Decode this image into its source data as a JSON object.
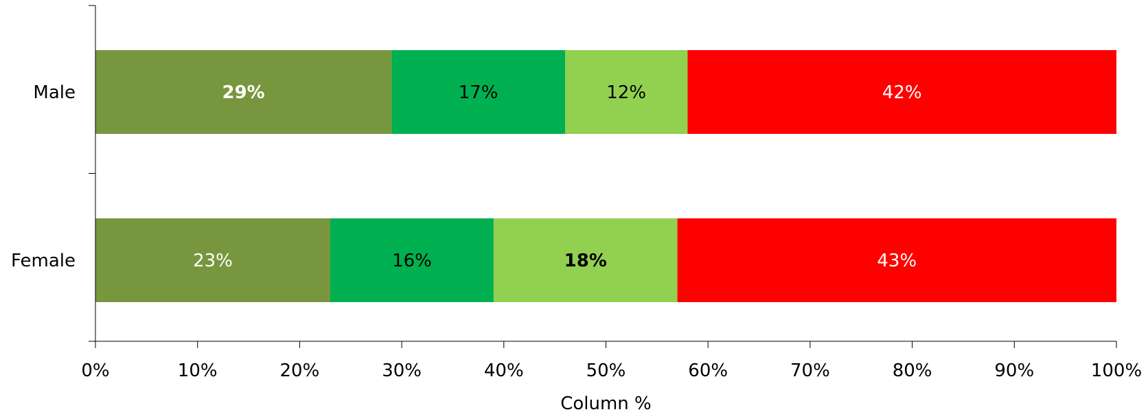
{
  "chart_data": {
    "type": "bar",
    "orientation": "horizontal",
    "stacked": true,
    "normalized": true,
    "categories": [
      "Male",
      "Female"
    ],
    "series": [
      {
        "color": "#78963D",
        "values": [
          29,
          23
        ],
        "labels": [
          "29%",
          "23%"
        ],
        "label_colors": [
          "#FFFFFF",
          "#FFFFFF"
        ],
        "label_bold": [
          true,
          false
        ]
      },
      {
        "color": "#00B050",
        "values": [
          17,
          16
        ],
        "labels": [
          "17%",
          "16%"
        ],
        "label_colors": [
          "#000000",
          "#000000"
        ],
        "label_bold": [
          false,
          false
        ]
      },
      {
        "color": "#92D050",
        "values": [
          12,
          18
        ],
        "labels": [
          "12%",
          "18%"
        ],
        "label_colors": [
          "#000000",
          "#000000"
        ],
        "label_bold": [
          false,
          true
        ]
      },
      {
        "color": "#FF0000",
        "values": [
          42,
          43
        ],
        "labels": [
          "42%",
          "43%"
        ],
        "label_colors": [
          "#FFFFFF",
          "#FFFFFF"
        ],
        "label_bold": [
          false,
          false
        ]
      }
    ],
    "xlim": [
      0,
      100
    ],
    "xticks": [
      "0%",
      "10%",
      "20%",
      "30%",
      "40%",
      "50%",
      "60%",
      "70%",
      "80%",
      "90%",
      "100%"
    ],
    "xlabel": "Column %",
    "ylabel": "",
    "title": "",
    "grid": false,
    "legend": "none"
  }
}
